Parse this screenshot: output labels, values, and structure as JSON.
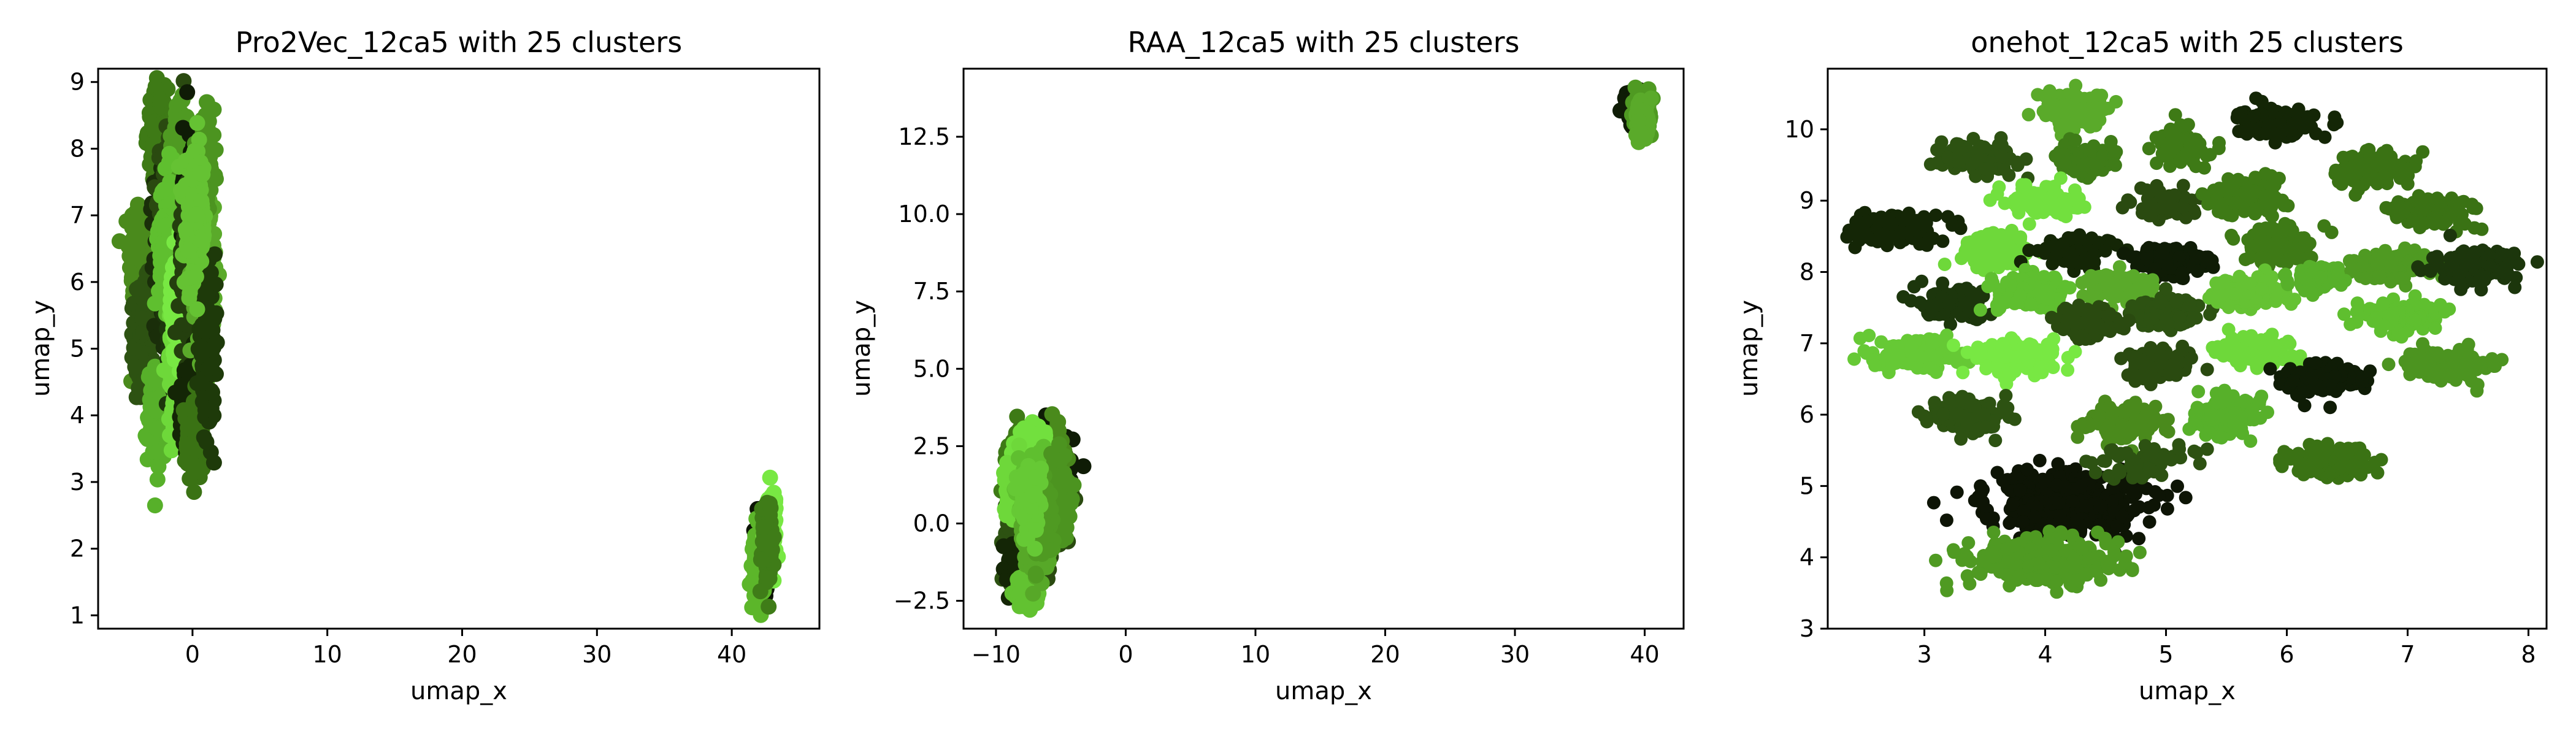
{
  "chart_data": [
    {
      "type": "scatter",
      "title": "Pro2Vec_12ca5 with 25 clusters",
      "xlabel": "umap_x",
      "ylabel": "umap_y",
      "xlim": [
        -7,
        46.5
      ],
      "ylim": [
        0.8,
        9.2
      ],
      "xticks": [
        0,
        10,
        20,
        30,
        40
      ],
      "yticks": [
        1,
        2,
        3,
        4,
        5,
        6,
        7,
        8,
        9
      ],
      "clusters": [
        {
          "cx": -4.0,
          "cy": 6.4,
          "sx": 0.35,
          "sy": 0.45,
          "n": 180,
          "color": "#4a8a1c"
        },
        {
          "cx": -3.6,
          "cy": 5.2,
          "sx": 0.35,
          "sy": 0.4,
          "n": 160,
          "color": "#2d5212"
        },
        {
          "cx": -2.6,
          "cy": 8.3,
          "sx": 0.35,
          "sy": 0.3,
          "n": 150,
          "color": "#3e7a16"
        },
        {
          "cx": -2.6,
          "cy": 4.0,
          "sx": 0.35,
          "sy": 0.35,
          "n": 150,
          "color": "#57b02a"
        },
        {
          "cx": -1.8,
          "cy": 6.5,
          "sx": 0.5,
          "sy": 0.6,
          "n": 220,
          "color": "#1a2e0a"
        },
        {
          "cx": -1.4,
          "cy": 7.3,
          "sx": 0.45,
          "sy": 0.5,
          "n": 200,
          "color": "#2a4a10"
        },
        {
          "cx": -1.1,
          "cy": 5.6,
          "sx": 0.4,
          "sy": 0.6,
          "n": 200,
          "color": "#1c360c"
        },
        {
          "cx": -0.8,
          "cy": 7.8,
          "sx": 0.35,
          "sy": 0.4,
          "n": 150,
          "color": "#4f9a22"
        },
        {
          "cx": -1.9,
          "cy": 6.6,
          "sx": 0.3,
          "sy": 0.5,
          "n": 160,
          "color": "#5fbf2f"
        },
        {
          "cx": -1.2,
          "cy": 4.8,
          "sx": 0.3,
          "sy": 0.5,
          "n": 150,
          "color": "#6ed83a"
        },
        {
          "cx": -1.0,
          "cy": 5.6,
          "sx": 0.3,
          "sy": 0.4,
          "n": 130,
          "color": "#78e843"
        },
        {
          "cx": 0.0,
          "cy": 7.2,
          "sx": 0.35,
          "sy": 0.6,
          "n": 180,
          "color": "#0f1c06"
        },
        {
          "cx": -0.2,
          "cy": 6.2,
          "sx": 0.4,
          "sy": 0.55,
          "n": 170,
          "color": "#243f0e"
        },
        {
          "cx": -0.3,
          "cy": 4.2,
          "sx": 0.3,
          "sy": 0.3,
          "n": 120,
          "color": "#142606"
        },
        {
          "cx": 0.0,
          "cy": 3.6,
          "sx": 0.3,
          "sy": 0.3,
          "n": 130,
          "color": "#3a7214"
        },
        {
          "cx": 0.9,
          "cy": 6.0,
          "sx": 0.35,
          "sy": 0.6,
          "n": 170,
          "color": "#5aaa2a"
        },
        {
          "cx": 1.0,
          "cy": 7.8,
          "sx": 0.3,
          "sy": 0.35,
          "n": 140,
          "color": "#4c9420"
        },
        {
          "cx": 1.1,
          "cy": 5.0,
          "sx": 0.3,
          "sy": 0.5,
          "n": 150,
          "color": "#1e3a0a"
        },
        {
          "cx": 0.2,
          "cy": 6.9,
          "sx": 0.4,
          "sy": 0.5,
          "n": 150,
          "color": "#65c233"
        },
        {
          "cx": 42.4,
          "cy": 1.9,
          "sx": 0.25,
          "sy": 0.3,
          "n": 120,
          "color": "#0d1405"
        },
        {
          "cx": 42.0,
          "cy": 1.7,
          "sx": 0.2,
          "sy": 0.25,
          "n": 110,
          "color": "#5cb62a"
        },
        {
          "cx": 42.9,
          "cy": 2.4,
          "sx": 0.2,
          "sy": 0.25,
          "n": 110,
          "color": "#78e843"
        },
        {
          "cx": 42.6,
          "cy": 2.1,
          "sx": 0.2,
          "sy": 0.3,
          "n": 100,
          "color": "#3f7c18"
        }
      ]
    },
    {
      "type": "scatter",
      "title": "RAA_12ca5 with 25 clusters",
      "xlabel": "umap_x",
      "ylabel": "umap_y",
      "xlim": [
        -12.5,
        43
      ],
      "ylim": [
        -3.4,
        14.7
      ],
      "xticks": [
        -10,
        0,
        10,
        20,
        30,
        40
      ],
      "yticks": [
        -2.5,
        0.0,
        2.5,
        5.0,
        7.5,
        10.0,
        12.5
      ],
      "ytick_labels": [
        "−2.5",
        "0.0",
        "2.5",
        "5.0",
        "7.5",
        "10.0",
        "12.5"
      ],
      "xtick_labels": [
        "−10",
        "0",
        "10",
        "20",
        "30",
        "40"
      ],
      "clusters": [
        {
          "cx": -6.0,
          "cy": 1.6,
          "sx": 0.9,
          "sy": 0.7,
          "n": 200,
          "color": "#0f1c06"
        },
        {
          "cx": -8.0,
          "cy": 1.8,
          "sx": 0.6,
          "sy": 0.6,
          "n": 160,
          "color": "#3e7a16"
        },
        {
          "cx": -6.5,
          "cy": 0.5,
          "sx": 0.8,
          "sy": 0.8,
          "n": 200,
          "color": "#2a4a10"
        },
        {
          "cx": -8.2,
          "cy": -0.4,
          "sx": 0.5,
          "sy": 0.7,
          "n": 170,
          "color": "#2d5212"
        },
        {
          "cx": -5.6,
          "cy": 2.0,
          "sx": 0.5,
          "sy": 0.5,
          "n": 150,
          "color": "#4a8a1c"
        },
        {
          "cx": -7.3,
          "cy": 2.5,
          "sx": 0.5,
          "sy": 0.3,
          "n": 140,
          "color": "#72e03e"
        },
        {
          "cx": -8.5,
          "cy": 1.2,
          "sx": 0.4,
          "sy": 0.4,
          "n": 130,
          "color": "#6ed83a"
        },
        {
          "cx": -7.0,
          "cy": 1.1,
          "sx": 0.5,
          "sy": 0.5,
          "n": 160,
          "color": "#5fbf2f"
        },
        {
          "cx": -7.8,
          "cy": -1.6,
          "sx": 0.5,
          "sy": 0.4,
          "n": 140,
          "color": "#142606"
        },
        {
          "cx": -7.6,
          "cy": -2.2,
          "sx": 0.4,
          "sy": 0.25,
          "n": 120,
          "color": "#62c231"
        },
        {
          "cx": -6.8,
          "cy": -0.5,
          "sx": 0.5,
          "sy": 0.5,
          "n": 150,
          "color": "#57a828"
        },
        {
          "cx": -5.2,
          "cy": 0.8,
          "sx": 0.4,
          "sy": 0.6,
          "n": 140,
          "color": "#4c9420"
        },
        {
          "cx": -6.6,
          "cy": 0.2,
          "sx": 0.45,
          "sy": 0.6,
          "n": 150,
          "color": "#4f9a22"
        },
        {
          "cx": -7.4,
          "cy": 0.9,
          "sx": 0.4,
          "sy": 0.5,
          "n": 140,
          "color": "#66c935"
        },
        {
          "cx": 39.3,
          "cy": 13.4,
          "sx": 0.4,
          "sy": 0.3,
          "n": 140,
          "color": "#0f1c06"
        },
        {
          "cx": 39.8,
          "cy": 13.2,
          "sx": 0.35,
          "sy": 0.35,
          "n": 120,
          "color": "#4f9a22"
        },
        {
          "cx": 39.9,
          "cy": 13.1,
          "sx": 0.25,
          "sy": 0.3,
          "n": 100,
          "color": "#5aaa2a"
        }
      ]
    },
    {
      "type": "scatter",
      "title": "onehot_12ca5 with 25 clusters",
      "xlabel": "umap_x",
      "ylabel": "umap_y",
      "xlim": [
        2.2,
        8.15
      ],
      "ylim": [
        3.0,
        10.85
      ],
      "xticks": [
        3,
        4,
        5,
        6,
        7,
        8
      ],
      "yticks": [
        3,
        4,
        5,
        6,
        7,
        8,
        9,
        10
      ],
      "clusters": [
        {
          "cx": 4.25,
          "cy": 10.25,
          "sx": 0.13,
          "sy": 0.13,
          "n": 140,
          "color": "#5aaa2a"
        },
        {
          "cx": 5.12,
          "cy": 9.75,
          "sx": 0.1,
          "sy": 0.12,
          "n": 110,
          "color": "#3e7a16"
        },
        {
          "cx": 5.92,
          "cy": 10.1,
          "sx": 0.15,
          "sy": 0.1,
          "n": 140,
          "color": "#142606"
        },
        {
          "cx": 3.45,
          "cy": 9.6,
          "sx": 0.15,
          "sy": 0.1,
          "n": 140,
          "color": "#2d5212"
        },
        {
          "cx": 4.35,
          "cy": 9.55,
          "sx": 0.12,
          "sy": 0.1,
          "n": 110,
          "color": "#3f7c18"
        },
        {
          "cx": 6.7,
          "cy": 9.45,
          "sx": 0.15,
          "sy": 0.12,
          "n": 140,
          "color": "#3a7214"
        },
        {
          "cx": 2.75,
          "cy": 8.6,
          "sx": 0.17,
          "sy": 0.1,
          "n": 150,
          "color": "#142606"
        },
        {
          "cx": 4.0,
          "cy": 9.0,
          "sx": 0.14,
          "sy": 0.1,
          "n": 130,
          "color": "#72e03e"
        },
        {
          "cx": 4.98,
          "cy": 8.95,
          "sx": 0.12,
          "sy": 0.1,
          "n": 110,
          "color": "#2a4a10"
        },
        {
          "cx": 5.7,
          "cy": 9.05,
          "sx": 0.15,
          "sy": 0.12,
          "n": 140,
          "color": "#3e7a16"
        },
        {
          "cx": 7.2,
          "cy": 8.85,
          "sx": 0.17,
          "sy": 0.1,
          "n": 140,
          "color": "#3a7214"
        },
        {
          "cx": 3.6,
          "cy": 8.3,
          "sx": 0.14,
          "sy": 0.12,
          "n": 140,
          "color": "#6ed83a"
        },
        {
          "cx": 4.25,
          "cy": 8.3,
          "sx": 0.14,
          "sy": 0.1,
          "n": 120,
          "color": "#142606"
        },
        {
          "cx": 5.05,
          "cy": 8.15,
          "sx": 0.15,
          "sy": 0.1,
          "n": 150,
          "color": "#0f1c06"
        },
        {
          "cx": 6.85,
          "cy": 8.1,
          "sx": 0.17,
          "sy": 0.1,
          "n": 140,
          "color": "#4f9a22"
        },
        {
          "cx": 5.92,
          "cy": 8.35,
          "sx": 0.14,
          "sy": 0.12,
          "n": 140,
          "color": "#3e7a16"
        },
        {
          "cx": 7.55,
          "cy": 8.05,
          "sx": 0.17,
          "sy": 0.12,
          "n": 140,
          "color": "#1c360c"
        },
        {
          "cx": 3.3,
          "cy": 7.55,
          "sx": 0.15,
          "sy": 0.1,
          "n": 140,
          "color": "#1c360c"
        },
        {
          "cx": 3.9,
          "cy": 7.7,
          "sx": 0.15,
          "sy": 0.12,
          "n": 140,
          "color": "#5fbf2f"
        },
        {
          "cx": 4.6,
          "cy": 7.8,
          "sx": 0.15,
          "sy": 0.1,
          "n": 110,
          "color": "#5aaa2a"
        },
        {
          "cx": 5.0,
          "cy": 7.45,
          "sx": 0.14,
          "sy": 0.1,
          "n": 120,
          "color": "#2d5212"
        },
        {
          "cx": 5.7,
          "cy": 7.7,
          "sx": 0.15,
          "sy": 0.1,
          "n": 130,
          "color": "#65c233"
        },
        {
          "cx": 6.25,
          "cy": 7.9,
          "sx": 0.12,
          "sy": 0.08,
          "n": 90,
          "color": "#57b02a"
        },
        {
          "cx": 4.35,
          "cy": 7.3,
          "sx": 0.12,
          "sy": 0.1,
          "n": 110,
          "color": "#2a4a10"
        },
        {
          "cx": 6.95,
          "cy": 7.4,
          "sx": 0.17,
          "sy": 0.1,
          "n": 140,
          "color": "#5fbf2f"
        },
        {
          "cx": 2.95,
          "cy": 6.85,
          "sx": 0.17,
          "sy": 0.11,
          "n": 150,
          "color": "#66c935"
        },
        {
          "cx": 3.75,
          "cy": 6.8,
          "sx": 0.17,
          "sy": 0.12,
          "n": 150,
          "color": "#78e843"
        },
        {
          "cx": 4.95,
          "cy": 6.7,
          "sx": 0.13,
          "sy": 0.1,
          "n": 110,
          "color": "#2a4a10"
        },
        {
          "cx": 5.75,
          "cy": 6.9,
          "sx": 0.15,
          "sy": 0.1,
          "n": 130,
          "color": "#6ed83a"
        },
        {
          "cx": 6.3,
          "cy": 6.5,
          "sx": 0.14,
          "sy": 0.1,
          "n": 130,
          "color": "#0f1c06"
        },
        {
          "cx": 7.35,
          "cy": 6.7,
          "sx": 0.17,
          "sy": 0.1,
          "n": 140,
          "color": "#4c9420"
        },
        {
          "cx": 3.35,
          "cy": 6.0,
          "sx": 0.15,
          "sy": 0.12,
          "n": 140,
          "color": "#2d5212"
        },
        {
          "cx": 4.65,
          "cy": 5.9,
          "sx": 0.15,
          "sy": 0.12,
          "n": 140,
          "color": "#4a8a1c"
        },
        {
          "cx": 5.5,
          "cy": 5.95,
          "sx": 0.12,
          "sy": 0.13,
          "n": 120,
          "color": "#57b02a"
        },
        {
          "cx": 6.35,
          "cy": 5.35,
          "sx": 0.17,
          "sy": 0.12,
          "n": 150,
          "color": "#3a7214"
        },
        {
          "cx": 4.2,
          "cy": 4.75,
          "sx": 0.32,
          "sy": 0.22,
          "n": 380,
          "color": "#0d1405"
        },
        {
          "cx": 3.95,
          "cy": 3.95,
          "sx": 0.3,
          "sy": 0.15,
          "n": 360,
          "color": "#4f9a22"
        },
        {
          "cx": 4.8,
          "cy": 5.35,
          "sx": 0.2,
          "sy": 0.12,
          "n": 60,
          "color": "#2d5212"
        }
      ]
    }
  ]
}
